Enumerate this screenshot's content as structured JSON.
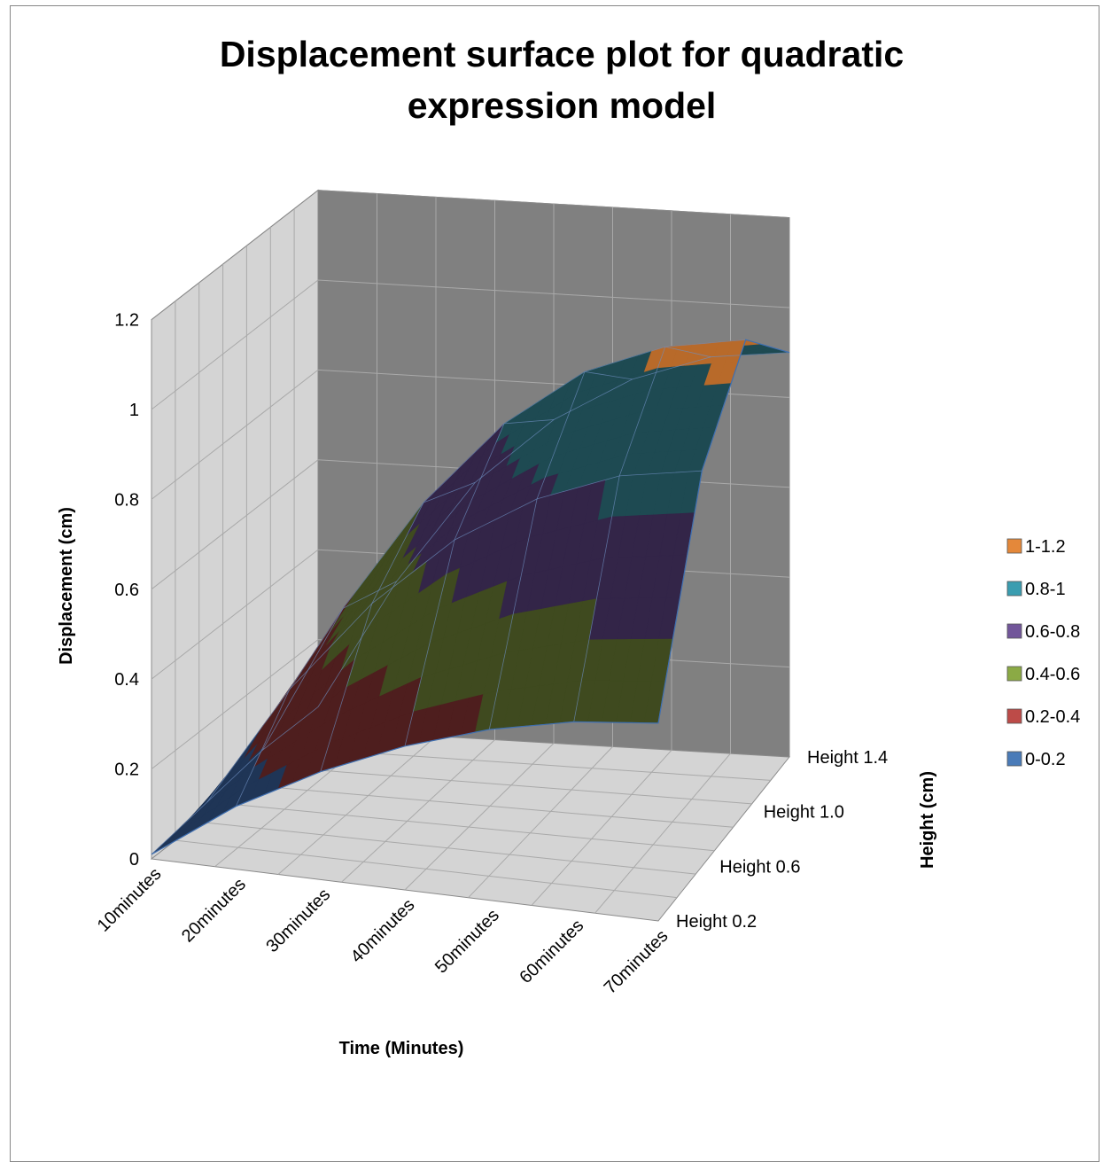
{
  "chart_data": {
    "type": "surface",
    "title_line1": "Displacement surface plot for quadratic",
    "title_line2": "expression model",
    "xlabel": "Time (Minutes)",
    "ylabel": "Displacement (cm)",
    "zlabel": "Height (cm)",
    "x_categories": [
      "10minutes",
      "20minutes",
      "30minutes",
      "40minutes",
      "50minutes",
      "60minutes",
      "70minutes"
    ],
    "z_series_labels": [
      "Height 0.2",
      "Height 0.6",
      "Height 1.0",
      "Height 1.4"
    ],
    "y_ticks": [
      "0",
      "0.2",
      "0.4",
      "0.6",
      "0.8",
      "1",
      "1.2"
    ],
    "ylim": [
      0,
      1.2
    ],
    "series": [
      {
        "name": "Height 0.2",
        "values": [
          0.01,
          0.14,
          0.24,
          0.32,
          0.38,
          0.42,
          0.44
        ]
      },
      {
        "name": "Height 0.6",
        "values": [
          0.03,
          0.3,
          0.51,
          0.67,
          0.78,
          0.85,
          0.88
        ]
      },
      {
        "name": "Height 1.0",
        "values": [
          0.05,
          0.38,
          0.63,
          0.82,
          0.95,
          1.02,
          1.05
        ]
      },
      {
        "name": "Height 1.4",
        "values": [
          0.05,
          0.34,
          0.57,
          0.72,
          0.82,
          0.88,
          0.9
        ]
      }
    ],
    "legend_position": "right",
    "legend": [
      {
        "label": "1-1.2",
        "color": "#E4883A",
        "min": 1.0,
        "max": 1.2
      },
      {
        "label": "0.8-1",
        "color": "#3A9DB0",
        "min": 0.8,
        "max": 1.0
      },
      {
        "label": "0.6-0.8",
        "color": "#72569A",
        "min": 0.6,
        "max": 0.8
      },
      {
        "label": "0.4-0.6",
        "color": "#8BAA45",
        "min": 0.4,
        "max": 0.6
      },
      {
        "label": "0.2-0.4",
        "color": "#BD4B48",
        "min": 0.2,
        "max": 0.4
      },
      {
        "label": "0-0.2",
        "color": "#4A7BB8",
        "min": 0.0,
        "max": 0.2
      }
    ],
    "surface_colors": {
      "0-0.2": "#1F3556",
      "0.2-0.4": "#4E1E1E",
      "0.4-0.6": "#3F4A1F",
      "0.6-0.8": "#332548",
      "0.8-1": "#1E4A52",
      "1-1.2": "#B86A2A"
    },
    "wall_colors": {
      "back": "#808080",
      "side": "#D4D4D4",
      "floor": "#D4D4D4"
    },
    "grid": true
  }
}
